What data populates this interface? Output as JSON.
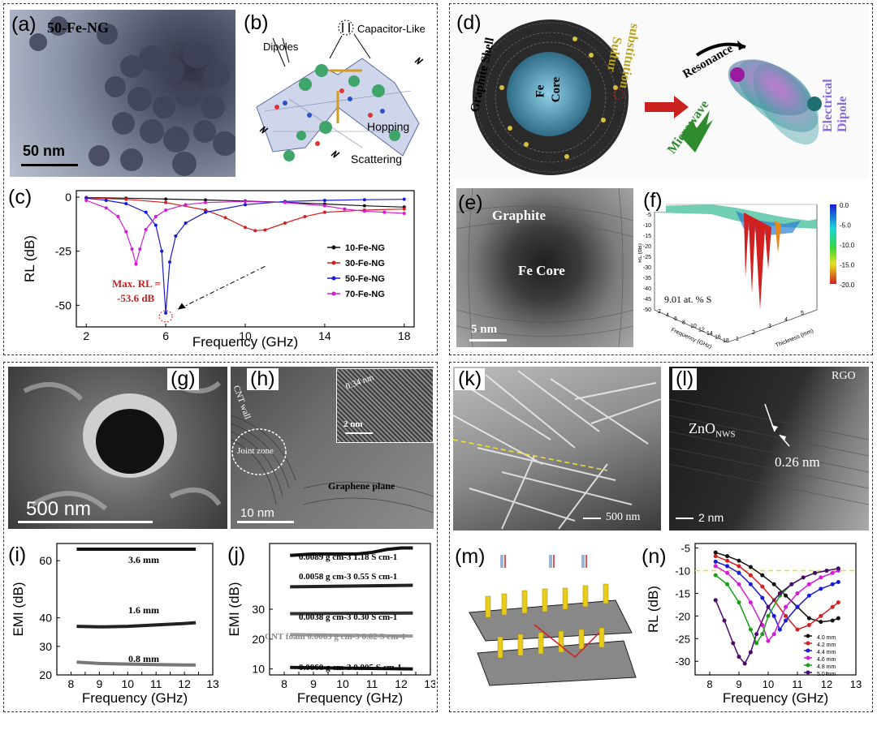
{
  "colors": {
    "red": "#d21f1f",
    "blue": "#1a1ad6",
    "magenta": "#d41ad4",
    "black": "#111111"
  },
  "a": {
    "label": "(a)",
    "sample": "50-Fe-NG",
    "scale": "50 nm"
  },
  "b": {
    "label": "(b)",
    "dipoles": "Dipoles",
    "capacitor": "Capacitor-Like",
    "hopping": "Hopping",
    "scattering": "Scattering"
  },
  "c": {
    "label": "(c)",
    "max_label": "Max. RL =",
    "max_value": "-53.6 dB"
  },
  "d": {
    "label": "(d)",
    "graphite_shell": "Graphite Shell",
    "fe": "Fe",
    "core": "Core",
    "sulfur": "Sulfur",
    "substitution": "substitution",
    "resonance": "Resonance",
    "microwave": "Microwave",
    "dipole": "Electrical Dipole"
  },
  "e": {
    "label": "(e)",
    "graphite": "Graphite",
    "core": "Fe Core",
    "scale": "5 nm"
  },
  "f": {
    "label": "(f)",
    "annotation": "9.01 at. % S"
  },
  "g": {
    "label": "(g)",
    "scale": "500 nm"
  },
  "h": {
    "label": "(h)",
    "cnt": "CNT wall",
    "joint": "Joint zone",
    "plane": "Graphene plane",
    "inset_spacing": "0.34 nm",
    "inset_scale": "2 nm",
    "scale": "10 nm"
  },
  "k": {
    "label": "(k)",
    "scale": "500 nm"
  },
  "l": {
    "label": "(l)",
    "rgo": "RGO",
    "zno": "ZnO",
    "zno_sub": "NWS",
    "spacing": "0.26 nm",
    "scale": "2 nm"
  },
  "m": {
    "label": "(m)"
  },
  "chart_data": [
    {
      "id": "c",
      "type": "line",
      "title": "",
      "xlabel": "Frequency (GHz)",
      "ylabel": "RL (dB)",
      "xlim": [
        1.5,
        18.5
      ],
      "ylim": [
        -60,
        3
      ],
      "xticks": [
        2,
        6,
        10,
        14,
        18
      ],
      "yticks": [
        0,
        -25,
        -50
      ],
      "ytick_labels": [
        "0",
        "-25",
        "-50"
      ],
      "xtick_labels": [
        "2",
        "6",
        "10",
        "14",
        "18"
      ],
      "series": [
        {
          "name": "10-Fe-NG",
          "color": "#111111",
          "x": [
            2,
            4,
            6,
            8,
            10,
            12,
            14,
            16,
            18
          ],
          "y": [
            -0.2,
            -0.5,
            -0.9,
            -1.3,
            -1.8,
            -2.4,
            -3.2,
            -4.0,
            -4.6
          ]
        },
        {
          "name": "30-Fe-NG",
          "color": "#d21f1f",
          "x": [
            2,
            4,
            6,
            8,
            9,
            10,
            10.5,
            11,
            12,
            13,
            14,
            16,
            18
          ],
          "y": [
            -0.3,
            -1.0,
            -2.5,
            -6,
            -9.5,
            -14,
            -15.5,
            -15.2,
            -12,
            -9,
            -7,
            -6,
            -5.5
          ]
        },
        {
          "name": "50-Fe-NG",
          "color": "#1a1ad6",
          "x": [
            2,
            3,
            4,
            5,
            5.5,
            5.8,
            6,
            6.2,
            6.5,
            7,
            8,
            10,
            12,
            14,
            16,
            18
          ],
          "y": [
            -0.5,
            -1.5,
            -3,
            -7,
            -13,
            -25,
            -53.6,
            -30,
            -18,
            -12,
            -7,
            -3.5,
            -2,
            -1.5,
            -1.2,
            -1.0
          ]
        },
        {
          "name": "70-Fe-NG",
          "color": "#d41ad4",
          "x": [
            2,
            3,
            3.6,
            4,
            4.3,
            4.5,
            4.7,
            5,
            5.5,
            6,
            7,
            8,
            10,
            12,
            14,
            15,
            16,
            17,
            18
          ],
          "y": [
            -1.5,
            -5,
            -9,
            -16,
            -24,
            -31,
            -24,
            -15,
            -9,
            -6,
            -3.5,
            -2.5,
            -2,
            -2.5,
            -4,
            -5.5,
            -6.5,
            -7,
            -7.5
          ]
        }
      ]
    },
    {
      "id": "i",
      "type": "line",
      "xlabel": "Frequency (GHz)",
      "ylabel": "EMI (dB)",
      "xlim": [
        7.5,
        13
      ],
      "ylim": [
        20,
        66
      ],
      "xticks": [
        8,
        8.5,
        9,
        9.5,
        10,
        10.5,
        11,
        11.5,
        12,
        12.5,
        13
      ],
      "xtick_labels": [
        "8",
        "9",
        "10",
        "11",
        "12",
        "13"
      ],
      "yticks": [
        20,
        30,
        40,
        60
      ],
      "ytick_labels": [
        "20",
        "30",
        "40",
        "60"
      ],
      "series": [
        {
          "name": "3.6 mm",
          "color": "#111111",
          "x": [
            8.2,
            12.4
          ],
          "y": [
            64,
            64
          ]
        },
        {
          "name": "1.6 mm",
          "color": "#222222",
          "x": [
            8.2,
            9,
            10,
            11,
            12,
            12.4
          ],
          "y": [
            37,
            36.8,
            37,
            37.5,
            38,
            38.3
          ]
        },
        {
          "name": "0.8 mm",
          "color": "#777777",
          "x": [
            8.2,
            9,
            10,
            11,
            12,
            12.4
          ],
          "y": [
            24.5,
            24,
            23.8,
            23.6,
            23.5,
            23.5
          ]
        }
      ]
    },
    {
      "id": "j",
      "type": "line",
      "xlabel": "Frequency (GHz)",
      "ylabel": "EMI (dB)",
      "xlim": [
        7.5,
        13
      ],
      "ylim": [
        8,
        52
      ],
      "xticks": [
        8,
        8.5,
        9,
        9.5,
        10,
        10.5,
        11,
        11.5,
        12,
        12.5,
        13
      ],
      "xtick_labels": [
        "8",
        "9",
        "10",
        "11",
        "12",
        "13"
      ],
      "yticks": [
        10,
        20,
        30
      ],
      "ytick_labels": [
        "10",
        "20",
        "30"
      ],
      "series": [
        {
          "name": "0.0089 g cm-3 1.18 S cm-1",
          "color": "#111111",
          "x": [
            8.2,
            9,
            10,
            10.5,
            11,
            11.5,
            12,
            12.4
          ],
          "y": [
            48,
            48.5,
            48.5,
            48.5,
            49,
            50,
            50.5,
            50.5
          ]
        },
        {
          "name": "0.0058 g cm-3 0.55 S cm-1",
          "color": "#222222",
          "x": [
            8.2,
            12.4
          ],
          "y": [
            37.5,
            38
          ]
        },
        {
          "name": "0.0038 g cm-3 0.30 S cm-1",
          "color": "#333333",
          "x": [
            8.2,
            12.4
          ],
          "y": [
            28.5,
            28.7
          ]
        },
        {
          "name": "CNT foam 0.0063 g cm-3 0.62 S cm-1",
          "color": "#999999",
          "x": [
            8.2,
            12.4
          ],
          "y": [
            21.5,
            21
          ]
        },
        {
          "name": "0.0060 g cm-3 0.005 S cm-1",
          "color": "#111111",
          "x": [
            8.2,
            12.4
          ],
          "y": [
            10.5,
            10
          ]
        }
      ]
    },
    {
      "id": "n",
      "type": "line",
      "xlabel": "Frequency (GHz)",
      "ylabel": "RL (dB)",
      "xlim": [
        7.5,
        13
      ],
      "ylim": [
        -33,
        -4
      ],
      "xticks": [
        8,
        9,
        10,
        11,
        12,
        13
      ],
      "yticks": [
        -5,
        -10,
        -15,
        -20,
        -25,
        -30
      ],
      "ref_line": -10,
      "series": [
        {
          "name": "4.0 mm",
          "color": "#111111",
          "x": [
            8.2,
            8.6,
            9,
            9.4,
            9.8,
            10.2,
            10.6,
            11,
            11.4,
            11.8,
            12.2,
            12.4
          ],
          "y": [
            -6,
            -6.8,
            -7.8,
            -9.2,
            -11,
            -13,
            -15.5,
            -18,
            -20.5,
            -21.3,
            -21,
            -20.5
          ]
        },
        {
          "name": "4.2 mm",
          "color": "#d21f1f",
          "x": [
            8.2,
            8.6,
            9,
            9.4,
            9.8,
            10.2,
            10.6,
            11,
            11.4,
            11.8,
            12.2,
            12.4
          ],
          "y": [
            -6.8,
            -7.8,
            -9,
            -11,
            -13.5,
            -16.5,
            -20,
            -23,
            -22,
            -20,
            -18,
            -17
          ]
        },
        {
          "name": "4.4 mm",
          "color": "#1a1ad6",
          "x": [
            8.2,
            8.6,
            9,
            9.4,
            9.8,
            10.2,
            10.4,
            10.6,
            11,
            11.4,
            11.8,
            12.2,
            12.4
          ],
          "y": [
            -8,
            -9,
            -10.5,
            -13,
            -16,
            -20,
            -23,
            -21,
            -18,
            -15.5,
            -14,
            -13,
            -12.5
          ]
        },
        {
          "name": "4.6 mm",
          "color": "#d41ad4",
          "x": [
            8.2,
            8.6,
            9,
            9.4,
            9.8,
            10,
            10.2,
            10.6,
            11,
            11.4,
            11.8,
            12.2,
            12.4
          ],
          "y": [
            -9,
            -10.5,
            -13,
            -17,
            -22,
            -25.5,
            -24,
            -18,
            -15,
            -13,
            -11.5,
            -10.5,
            -10
          ]
        },
        {
          "name": "4.8 mm",
          "color": "#17a017",
          "x": [
            8.2,
            8.6,
            9,
            9.4,
            9.6,
            9.8,
            10,
            10.4,
            10.8,
            11.2,
            11.6,
            12,
            12.4
          ],
          "y": [
            -11,
            -13,
            -17,
            -23,
            -26,
            -24,
            -20,
            -15.5,
            -13,
            -11.5,
            -10.5,
            -10,
            -9.5
          ]
        },
        {
          "name": "5.0 mm",
          "color": "#4b0a6a",
          "x": [
            8.2,
            8.5,
            8.8,
            9,
            9.2,
            9.4,
            9.6,
            10,
            10.4,
            10.8,
            11.2,
            11.6,
            12,
            12.4
          ],
          "y": [
            -16.5,
            -21,
            -26,
            -29,
            -30.5,
            -28,
            -24,
            -18,
            -15,
            -13,
            -11.5,
            -10.5,
            -10,
            -9.5
          ]
        }
      ]
    },
    {
      "id": "f",
      "type": "surface3d",
      "xlabel": "Frequency (GHz)",
      "ylabel": "Thickness (mm)",
      "zlabel": "RL (dB)",
      "colorbar_ticks": [
        "0.0",
        "-5.0",
        "-10.0",
        "-15.0",
        "-20.0"
      ],
      "zticks": [
        "0",
        "-5",
        "-10",
        "-15",
        "-20",
        "-25",
        "-30",
        "-35",
        "-40",
        "-45",
        "-50"
      ],
      "freq_ticks": [
        "2",
        "4",
        "6",
        "8",
        "10",
        "12",
        "14",
        "16",
        "18"
      ],
      "thick_ticks": [
        "1",
        "2",
        "3",
        "4",
        "5"
      ]
    }
  ]
}
